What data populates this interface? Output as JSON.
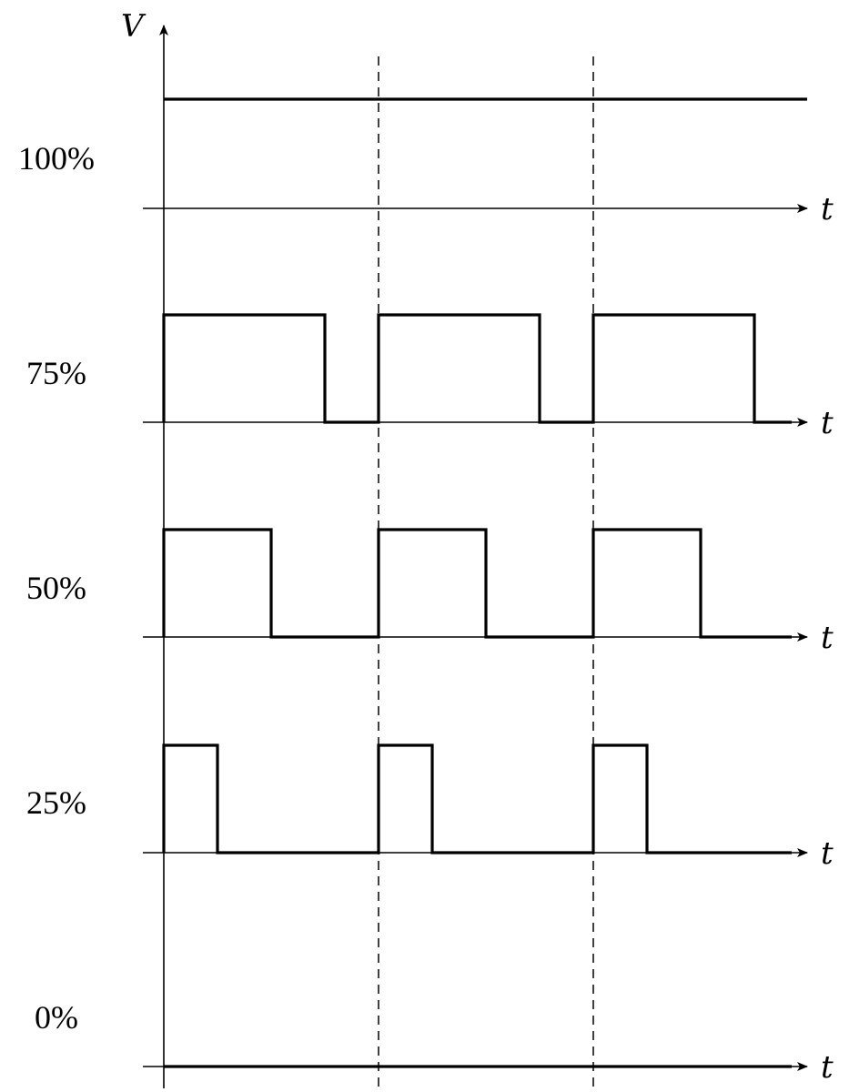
{
  "diagram": {
    "v_axis_label": "V",
    "t_axis_label": "t",
    "period_count": 3,
    "rows": [
      {
        "duty_label": "100%",
        "duty": 1.0
      },
      {
        "duty_label": "75%",
        "duty": 0.75
      },
      {
        "duty_label": "50%",
        "duty": 0.5
      },
      {
        "duty_label": "25%",
        "duty": 0.25
      },
      {
        "duty_label": "0%",
        "duty": 0.0
      }
    ]
  }
}
